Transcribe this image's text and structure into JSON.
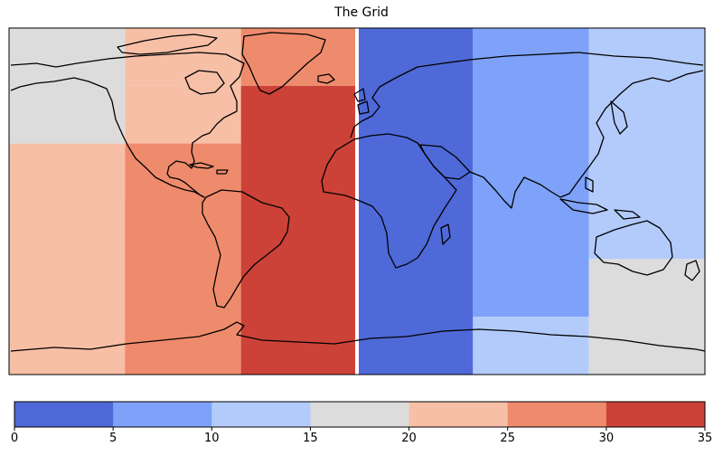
{
  "title": "The Grid",
  "colormap": {
    "name": "coolwarm",
    "bounds": [
      0,
      5,
      10,
      15,
      20,
      25,
      30,
      35
    ],
    "colors": [
      "#4f69d8",
      "#7ea2f9",
      "#b3cbfb",
      "#dcdcdc",
      "#f6bfa6",
      "#ef8b6d",
      "#cc4239"
    ]
  },
  "colorbar": {
    "ticks": [
      "0",
      "5",
      "10",
      "15",
      "20",
      "25",
      "30",
      "35"
    ]
  },
  "map": {
    "projection": "PlateCarree",
    "lon_range": [
      -180,
      180
    ],
    "lat_range": [
      -90,
      90
    ],
    "coastlines": true,
    "gridded_cells": [
      {
        "lon": [
          -180,
          -120
        ],
        "lat": [
          30,
          90
        ],
        "value": 17.5
      },
      {
        "lon": [
          -180,
          -120
        ],
        "lat": [
          -90,
          30
        ],
        "value": 22.5
      },
      {
        "lon": [
          -120,
          -60
        ],
        "lat": [
          60,
          90
        ],
        "value": 22.5
      },
      {
        "lon": [
          -120,
          -60
        ],
        "lat": [
          0,
          60
        ],
        "value": 22.5
      },
      {
        "lon": [
          -120,
          -60
        ],
        "lat": [
          -90,
          0
        ],
        "value": 27.5
      },
      {
        "lon": [
          -120,
          -60
        ],
        "lat": [
          -90,
          30
        ],
        "value": 27.5
      },
      {
        "lon": [
          -60,
          0
        ],
        "lat": [
          60,
          90
        ],
        "value": 27.5
      },
      {
        "lon": [
          -60,
          0
        ],
        "lat": [
          -90,
          60
        ],
        "value": 32.5
      },
      {
        "lon": [
          0,
          60
        ],
        "lat": [
          -90,
          90
        ],
        "value": 2.5
      },
      {
        "lon": [
          60,
          120
        ],
        "lat": [
          -60,
          90
        ],
        "value": 7.5
      },
      {
        "lon": [
          60,
          120
        ],
        "lat": [
          -90,
          -60
        ],
        "value": 12.5
      },
      {
        "lon": [
          120,
          180
        ],
        "lat": [
          -30,
          90
        ],
        "value": 12.5
      },
      {
        "lon": [
          120,
          180
        ],
        "lat": [
          -90,
          -30
        ],
        "value": 17.5
      }
    ]
  }
}
